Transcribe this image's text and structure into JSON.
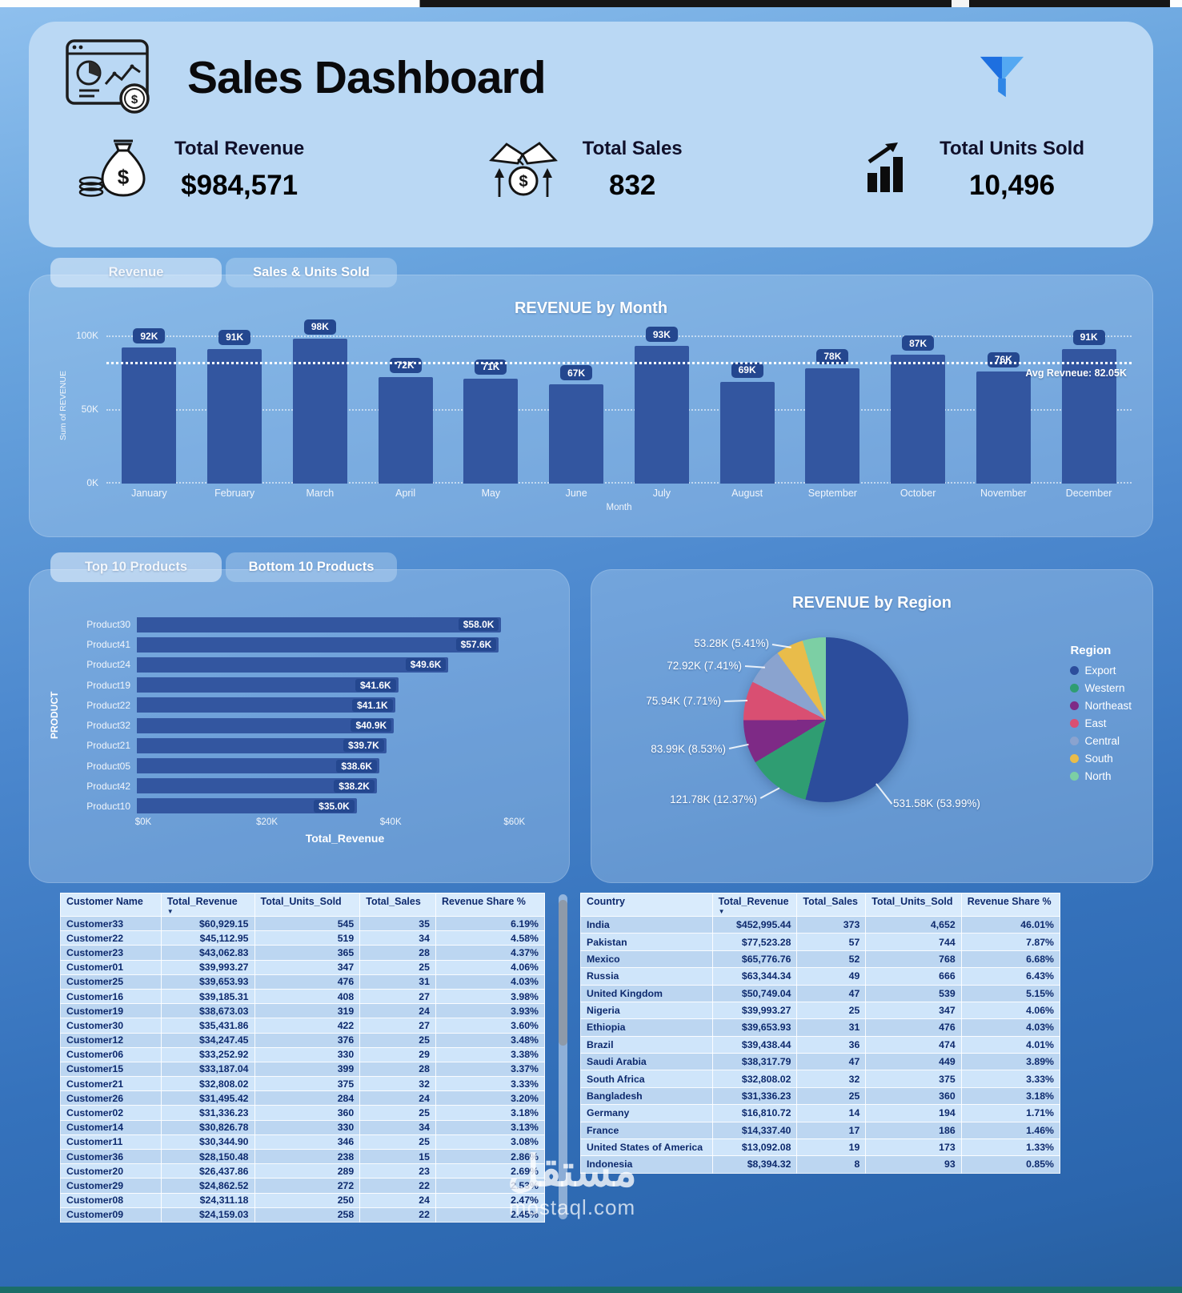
{
  "header": {
    "title": "Sales Dashboard",
    "dashboard_icon": "dashboard-analytics-icon",
    "filter_icon": "filter-funnel-icon"
  },
  "kpis": [
    {
      "label": "Total Revenue",
      "value": "$984,571",
      "icon": "money-bag-icon"
    },
    {
      "label": "Total Sales",
      "value": "832",
      "icon": "handshake-dollar-icon"
    },
    {
      "label": "Total Units Sold",
      "value": "10,496",
      "icon": "bar-growth-icon"
    }
  ],
  "chart_data": [
    {
      "id": "revenue_by_month",
      "type": "bar",
      "title": "REVENUE by Month",
      "tabs": [
        "Revenue",
        "Sales & Units Sold"
      ],
      "categories": [
        "January",
        "February",
        "March",
        "April",
        "May",
        "June",
        "July",
        "August",
        "September",
        "October",
        "November",
        "December"
      ],
      "values": [
        92,
        91,
        98,
        72,
        71,
        67,
        93,
        69,
        78,
        87,
        76,
        91
      ],
      "bar_labels": [
        "92K",
        "91K",
        "98K",
        "72K",
        "71K",
        "67K",
        "93K",
        "69K",
        "78K",
        "87K",
        "76K",
        "91K"
      ],
      "xlabel": "Month",
      "ylabel": "Sum of REVENUE",
      "y_ticks": [
        "100K",
        "50K",
        "0K"
      ],
      "ylim": [
        0,
        105
      ],
      "grid": true,
      "avg_line": {
        "label": "Avg Revneue: 82.05K",
        "value": 82.05
      },
      "bar_color": "#3356a0"
    },
    {
      "id": "top_10_products",
      "type": "bar",
      "orientation": "horizontal",
      "tabs": [
        "Top 10 Products",
        "Bottom 10 Products"
      ],
      "categories": [
        "Product30",
        "Product41",
        "Product24",
        "Product19",
        "Product22",
        "Product32",
        "Product21",
        "Product05",
        "Product42",
        "Product10"
      ],
      "values": [
        58.0,
        57.6,
        49.6,
        41.6,
        41.1,
        40.9,
        39.7,
        38.6,
        38.2,
        35.0
      ],
      "bar_labels": [
        "$58.0K",
        "$57.6K",
        "$49.6K",
        "$41.6K",
        "$41.1K",
        "$40.9K",
        "$39.7K",
        "$38.6K",
        "$38.2K",
        "$35.0K"
      ],
      "xlabel": "Total_Revenue",
      "ylabel": "PRODUCT",
      "x_ticks": [
        {
          "label": "$0K",
          "value": 0
        },
        {
          "label": "$20K",
          "value": 20
        },
        {
          "label": "$40K",
          "value": 40
        },
        {
          "label": "$60K",
          "value": 60
        }
      ],
      "xlim": [
        0,
        65.2
      ],
      "bar_color": "#3356a0"
    },
    {
      "id": "revenue_by_region",
      "type": "pie",
      "title": "REVENUE by Region",
      "legend_title": "Region",
      "legend_position": "right",
      "slices": [
        {
          "region": "Export",
          "value_k": 531.58,
          "pct": 53.99,
          "color": "#2c4d9c",
          "callout": "531.58K (53.99%)"
        },
        {
          "region": "Western",
          "value_k": 121.78,
          "pct": 12.37,
          "color": "#2f9d72",
          "callout": "121.78K (12.37%)"
        },
        {
          "region": "Northeast",
          "value_k": 83.99,
          "pct": 8.53,
          "color": "#7e2a86",
          "callout": "83.99K (8.53%)"
        },
        {
          "region": "East",
          "value_k": 75.94,
          "pct": 7.71,
          "color": "#d94f72",
          "callout": "75.94K (7.71%)"
        },
        {
          "region": "Central",
          "value_k": 72.92,
          "pct": 7.41,
          "color": "#8aa3cf",
          "callout": "72.92K (7.41%)"
        },
        {
          "region": "South",
          "value_k": 53.28,
          "pct": 5.41,
          "color": "#e9bc4a",
          "callout": "53.28K (5.41%)"
        },
        {
          "region": "North",
          "value_k": 45.08,
          "pct": 4.58,
          "color": "#7ccfa4",
          "callout": ""
        }
      ]
    }
  ],
  "customer_table": {
    "columns": [
      "Customer Name",
      "Total_Revenue",
      "Total_Units_Sold",
      "Total_Sales",
      "Revenue Share %"
    ],
    "sort_column": "Total_Revenue",
    "rows": [
      [
        "Customer33",
        "$60,929.15",
        "545",
        "35",
        "6.19%"
      ],
      [
        "Customer22",
        "$45,112.95",
        "519",
        "34",
        "4.58%"
      ],
      [
        "Customer23",
        "$43,062.83",
        "365",
        "28",
        "4.37%"
      ],
      [
        "Customer01",
        "$39,993.27",
        "347",
        "25",
        "4.06%"
      ],
      [
        "Customer25",
        "$39,653.93",
        "476",
        "31",
        "4.03%"
      ],
      [
        "Customer16",
        "$39,185.31",
        "408",
        "27",
        "3.98%"
      ],
      [
        "Customer19",
        "$38,673.03",
        "319",
        "24",
        "3.93%"
      ],
      [
        "Customer30",
        "$35,431.86",
        "422",
        "27",
        "3.60%"
      ],
      [
        "Customer12",
        "$34,247.45",
        "376",
        "25",
        "3.48%"
      ],
      [
        "Customer06",
        "$33,252.92",
        "330",
        "29",
        "3.38%"
      ],
      [
        "Customer15",
        "$33,187.04",
        "399",
        "28",
        "3.37%"
      ],
      [
        "Customer21",
        "$32,808.02",
        "375",
        "32",
        "3.33%"
      ],
      [
        "Customer26",
        "$31,495.42",
        "284",
        "24",
        "3.20%"
      ],
      [
        "Customer02",
        "$31,336.23",
        "360",
        "25",
        "3.18%"
      ],
      [
        "Customer14",
        "$30,826.78",
        "330",
        "34",
        "3.13%"
      ],
      [
        "Customer11",
        "$30,344.90",
        "346",
        "25",
        "3.08%"
      ],
      [
        "Customer36",
        "$28,150.48",
        "238",
        "15",
        "2.86%"
      ],
      [
        "Customer20",
        "$26,437.86",
        "289",
        "23",
        "2.69%"
      ],
      [
        "Customer29",
        "$24,862.52",
        "272",
        "22",
        "2.53%"
      ],
      [
        "Customer08",
        "$24,311.18",
        "250",
        "24",
        "2.47%"
      ],
      [
        "Customer09",
        "$24,159.03",
        "258",
        "22",
        "2.45%"
      ]
    ]
  },
  "country_table": {
    "columns": [
      "Country",
      "Total_Revenue",
      "Total_Sales",
      "Total_Units_Sold",
      "Revenue Share %"
    ],
    "sort_column": "Total_Revenue",
    "rows": [
      [
        "India",
        "$452,995.44",
        "373",
        "4,652",
        "46.01%"
      ],
      [
        "Pakistan",
        "$77,523.28",
        "57",
        "744",
        "7.87%"
      ],
      [
        "Mexico",
        "$65,776.76",
        "52",
        "768",
        "6.68%"
      ],
      [
        "Russia",
        "$63,344.34",
        "49",
        "666",
        "6.43%"
      ],
      [
        "United Kingdom",
        "$50,749.04",
        "47",
        "539",
        "5.15%"
      ],
      [
        "Nigeria",
        "$39,993.27",
        "25",
        "347",
        "4.06%"
      ],
      [
        "Ethiopia",
        "$39,653.93",
        "31",
        "476",
        "4.03%"
      ],
      [
        "Brazil",
        "$39,438.44",
        "36",
        "474",
        "4.01%"
      ],
      [
        "Saudi Arabia",
        "$38,317.79",
        "47",
        "449",
        "3.89%"
      ],
      [
        "South Africa",
        "$32,808.02",
        "32",
        "375",
        "3.33%"
      ],
      [
        "Bangladesh",
        "$31,336.23",
        "25",
        "360",
        "3.18%"
      ],
      [
        "Germany",
        "$16,810.72",
        "14",
        "194",
        "1.71%"
      ],
      [
        "France",
        "$14,337.40",
        "17",
        "186",
        "1.46%"
      ],
      [
        "United States of America",
        "$13,092.08",
        "19",
        "173",
        "1.33%"
      ],
      [
        "Indonesia",
        "$8,394.32",
        "8",
        "93",
        "0.85%"
      ]
    ]
  },
  "watermark": {
    "line1": "مستقل",
    "line2": "mostaql.com"
  }
}
